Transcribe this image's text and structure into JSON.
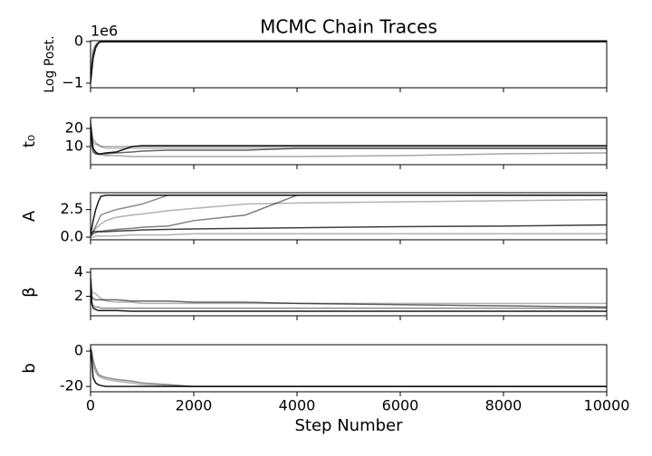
{
  "chart_data": [
    {
      "type": "line",
      "title": "MCMC Chain Traces",
      "ylabel": "Log Post.",
      "y_offset_label": "1e6",
      "x": [
        0,
        25,
        50,
        100,
        150,
        200,
        300,
        500,
        800,
        1000,
        1500,
        2000,
        3000,
        4000,
        6000,
        8000,
        10000
      ],
      "xlim": [
        0,
        10000
      ],
      "xticks": [
        0,
        2000,
        4000,
        6000,
        8000,
        10000
      ],
      "show_xtick_labels": false,
      "ylim": [
        -1110000,
        20000
      ],
      "yticks": [
        {
          "value": -1000000,
          "label": "−1"
        },
        0
      ],
      "series": [
        {
          "color": "rgba(0,0,0,0.85)",
          "values": [
            -1000000,
            -700000,
            -400000,
            -150000,
            -40000,
            -5000,
            -2000,
            -1000,
            -1000,
            -1000,
            -1000,
            -1000,
            -1000,
            -1000,
            -1000,
            -1000,
            -1000
          ]
        },
        {
          "color": "rgba(0,0,0,0.6)",
          "values": [
            -950000,
            -600000,
            -300000,
            -100000,
            -30000,
            -8000,
            -3000,
            -1500,
            -1200,
            -1100,
            -1000,
            -1000,
            -1000,
            -1000,
            -1000,
            -1000,
            -1000
          ]
        },
        {
          "color": "rgba(0,0,0,0.4)",
          "values": [
            -900000,
            -500000,
            -200000,
            -80000,
            -20000,
            -6000,
            -2500,
            -1500,
            -1200,
            -1100,
            -1100,
            -1000,
            -1000,
            -1000,
            -1000,
            -1000,
            -1000
          ]
        }
      ]
    },
    {
      "type": "line",
      "ylabel": "t₀",
      "x": [
        0,
        25,
        50,
        100,
        150,
        200,
        300,
        500,
        800,
        1000,
        1500,
        2000,
        3000,
        4000,
        6000,
        8000,
        10000
      ],
      "xlim": [
        0,
        10000
      ],
      "xticks": [
        0,
        2000,
        4000,
        6000,
        8000,
        10000
      ],
      "show_xtick_labels": false,
      "ylim": [
        0,
        26
      ],
      "yticks": [
        10,
        20
      ],
      "series": [
        {
          "color": "rgba(0,0,0,0.9)",
          "values": [
            22,
            15,
            9,
            7,
            6,
            6,
            6.5,
            7,
            10,
            10.5,
            10.5,
            10.5,
            10.5,
            10.5,
            10.5,
            10.5,
            10.5
          ]
        },
        {
          "color": "rgba(0,0,0,0.6)",
          "values": [
            20,
            12,
            7,
            6,
            6,
            6,
            6,
            6.5,
            7,
            7.5,
            8,
            8,
            8,
            9,
            9,
            9,
            9
          ]
        },
        {
          "color": "rgba(0,0,0,0.35)",
          "values": [
            24,
            18,
            14,
            12,
            11,
            10,
            10,
            10,
            10,
            10,
            10,
            10,
            10,
            10,
            10,
            10,
            10
          ]
        },
        {
          "color": "rgba(0,0,0,0.35)",
          "values": [
            18,
            10,
            8,
            6,
            5.5,
            5.5,
            5,
            5,
            4.5,
            4.5,
            4.5,
            4.5,
            4.5,
            4.5,
            5,
            6,
            6.5
          ]
        },
        {
          "color": "rgba(0,0,0,0.25)",
          "values": [
            25,
            15,
            12,
            11,
            11,
            10,
            9,
            9,
            9,
            9,
            9,
            9,
            9,
            9,
            9,
            9,
            9
          ]
        }
      ]
    },
    {
      "type": "line",
      "ylabel": "A",
      "x": [
        0,
        25,
        50,
        100,
        150,
        200,
        300,
        500,
        800,
        1000,
        1500,
        2000,
        3000,
        4000,
        6000,
        8000,
        10000
      ],
      "xlim": [
        0,
        10000
      ],
      "xticks": [
        0,
        2000,
        4000,
        6000,
        8000,
        10000
      ],
      "show_xtick_labels": false,
      "ylim": [
        -0.24,
        4.03
      ],
      "yticks": [
        {
          "value": 0,
          "label": "0.0"
        },
        2.5
      ],
      "series": [
        {
          "color": "rgba(0,0,0,0.9)",
          "values": [
            0.3,
            0.8,
            1.5,
            2.5,
            3.2,
            3.7,
            3.8,
            3.8,
            3.8,
            3.8,
            3.8,
            3.8,
            3.8,
            3.8,
            3.8,
            3.8,
            3.8
          ]
        },
        {
          "color": "rgba(0,0,0,0.5)",
          "values": [
            0.1,
            0.2,
            0.3,
            0.4,
            0.5,
            0.5,
            0.6,
            0.7,
            0.8,
            0.9,
            1.0,
            1.5,
            2.0,
            3.8,
            3.8,
            3.8,
            3.8
          ]
        },
        {
          "color": "rgba(0,0,0,0.75)",
          "values": [
            0.3,
            0.4,
            0.5,
            0.5,
            0.5,
            0.5,
            0.5,
            0.55,
            0.6,
            0.65,
            0.7,
            0.75,
            0.8,
            0.85,
            0.95,
            1.0,
            1.1
          ]
        },
        {
          "color": "rgba(0,0,0,0.3)",
          "values": [
            0.2,
            0.3,
            0.5,
            0.8,
            1.0,
            1.2,
            1.5,
            1.8,
            2.0,
            2.1,
            2.4,
            2.6,
            3.0,
            3.1,
            3.2,
            3.3,
            3.4
          ]
        },
        {
          "color": "rgba(0,0,0,0.3)",
          "values": [
            0,
            0,
            0,
            0.1,
            0.1,
            0.1,
            0.1,
            0.1,
            0.2,
            0.2,
            0.2,
            0.3,
            0.3,
            0.3,
            0.3,
            0.3,
            0.3
          ]
        },
        {
          "color": "rgba(0,0,0,0.45)",
          "values": [
            0.1,
            0.2,
            0.5,
            1.0,
            1.5,
            2.0,
            2.2,
            2.5,
            2.8,
            3.0,
            3.8,
            3.8,
            3.8,
            3.8,
            3.8,
            3.8,
            3.8
          ]
        }
      ]
    },
    {
      "type": "line",
      "ylabel": "β",
      "x": [
        0,
        25,
        50,
        100,
        150,
        200,
        300,
        500,
        800,
        1000,
        1500,
        2000,
        3000,
        4000,
        6000,
        8000,
        10000
      ],
      "xlim": [
        0,
        10000
      ],
      "xticks": [
        0,
        2000,
        4000,
        6000,
        8000,
        10000
      ],
      "show_xtick_labels": false,
      "ylim": [
        0.37,
        4.3
      ],
      "yticks": [
        2,
        4
      ],
      "series": [
        {
          "color": "rgba(0,0,0,0.9)",
          "values": [
            3.5,
            1.5,
            1.0,
            0.9,
            0.8,
            0.8,
            0.8,
            0.8,
            0.75,
            0.75,
            0.75,
            0.75,
            0.75,
            0.75,
            0.75,
            0.75,
            0.75
          ]
        },
        {
          "color": "rgba(0,0,0,0.6)",
          "values": [
            3,
            2,
            1.8,
            1.7,
            1.7,
            1.7,
            1.7,
            1.7,
            1.6,
            1.6,
            1.6,
            1.5,
            1.5,
            1.4,
            1.3,
            1.2,
            1.1
          ]
        },
        {
          "color": "rgba(0,0,0,0.3)",
          "values": [
            4,
            2.5,
            2.3,
            2.2,
            2.0,
            1.8,
            1.6,
            1.5,
            1.5,
            1.4,
            1.4,
            1.4,
            1.4,
            1.4,
            1.4,
            1.4,
            1.4
          ]
        },
        {
          "color": "rgba(0,0,0,0.45)",
          "values": [
            2,
            1.3,
            1.2,
            1.1,
            1.1,
            1.0,
            1.0,
            1.0,
            1.0,
            1.0,
            1.0,
            1.0,
            1.0,
            1.0,
            1.0,
            1.0,
            1.0
          ]
        }
      ]
    },
    {
      "type": "line",
      "ylabel": "b",
      "xlabel": "Step Number",
      "x": [
        0,
        25,
        50,
        100,
        150,
        200,
        300,
        500,
        800,
        1000,
        1500,
        2000,
        3000,
        4000,
        6000,
        8000,
        10000
      ],
      "xlim": [
        0,
        10000
      ],
      "xticks": [
        0,
        2000,
        4000,
        6000,
        8000,
        10000
      ],
      "show_xtick_labels": true,
      "ylim": [
        -23,
        3.6
      ],
      "yticks": [
        -20,
        0
      ],
      "series": [
        {
          "color": "rgba(0,0,0,0.9)",
          "values": [
            2,
            -5,
            -15,
            -18,
            -19,
            -19.5,
            -20,
            -20,
            -20,
            -20,
            -20,
            -20,
            -20,
            -20,
            -20,
            -20,
            -20
          ]
        },
        {
          "color": "rgba(0,0,0,0.45)",
          "values": [
            1,
            0,
            -5,
            -10,
            -13,
            -14,
            -15,
            -16,
            -17,
            -18,
            -19,
            -20,
            -20,
            -20,
            -20,
            -20,
            -20
          ]
        },
        {
          "color": "rgba(0,0,0,0.3)",
          "values": [
            0,
            -3,
            -8,
            -12,
            -14,
            -15,
            -16,
            -17,
            -18,
            -19,
            -19.5,
            -20,
            -20,
            -20,
            -20,
            -20,
            -20
          ]
        }
      ]
    }
  ]
}
